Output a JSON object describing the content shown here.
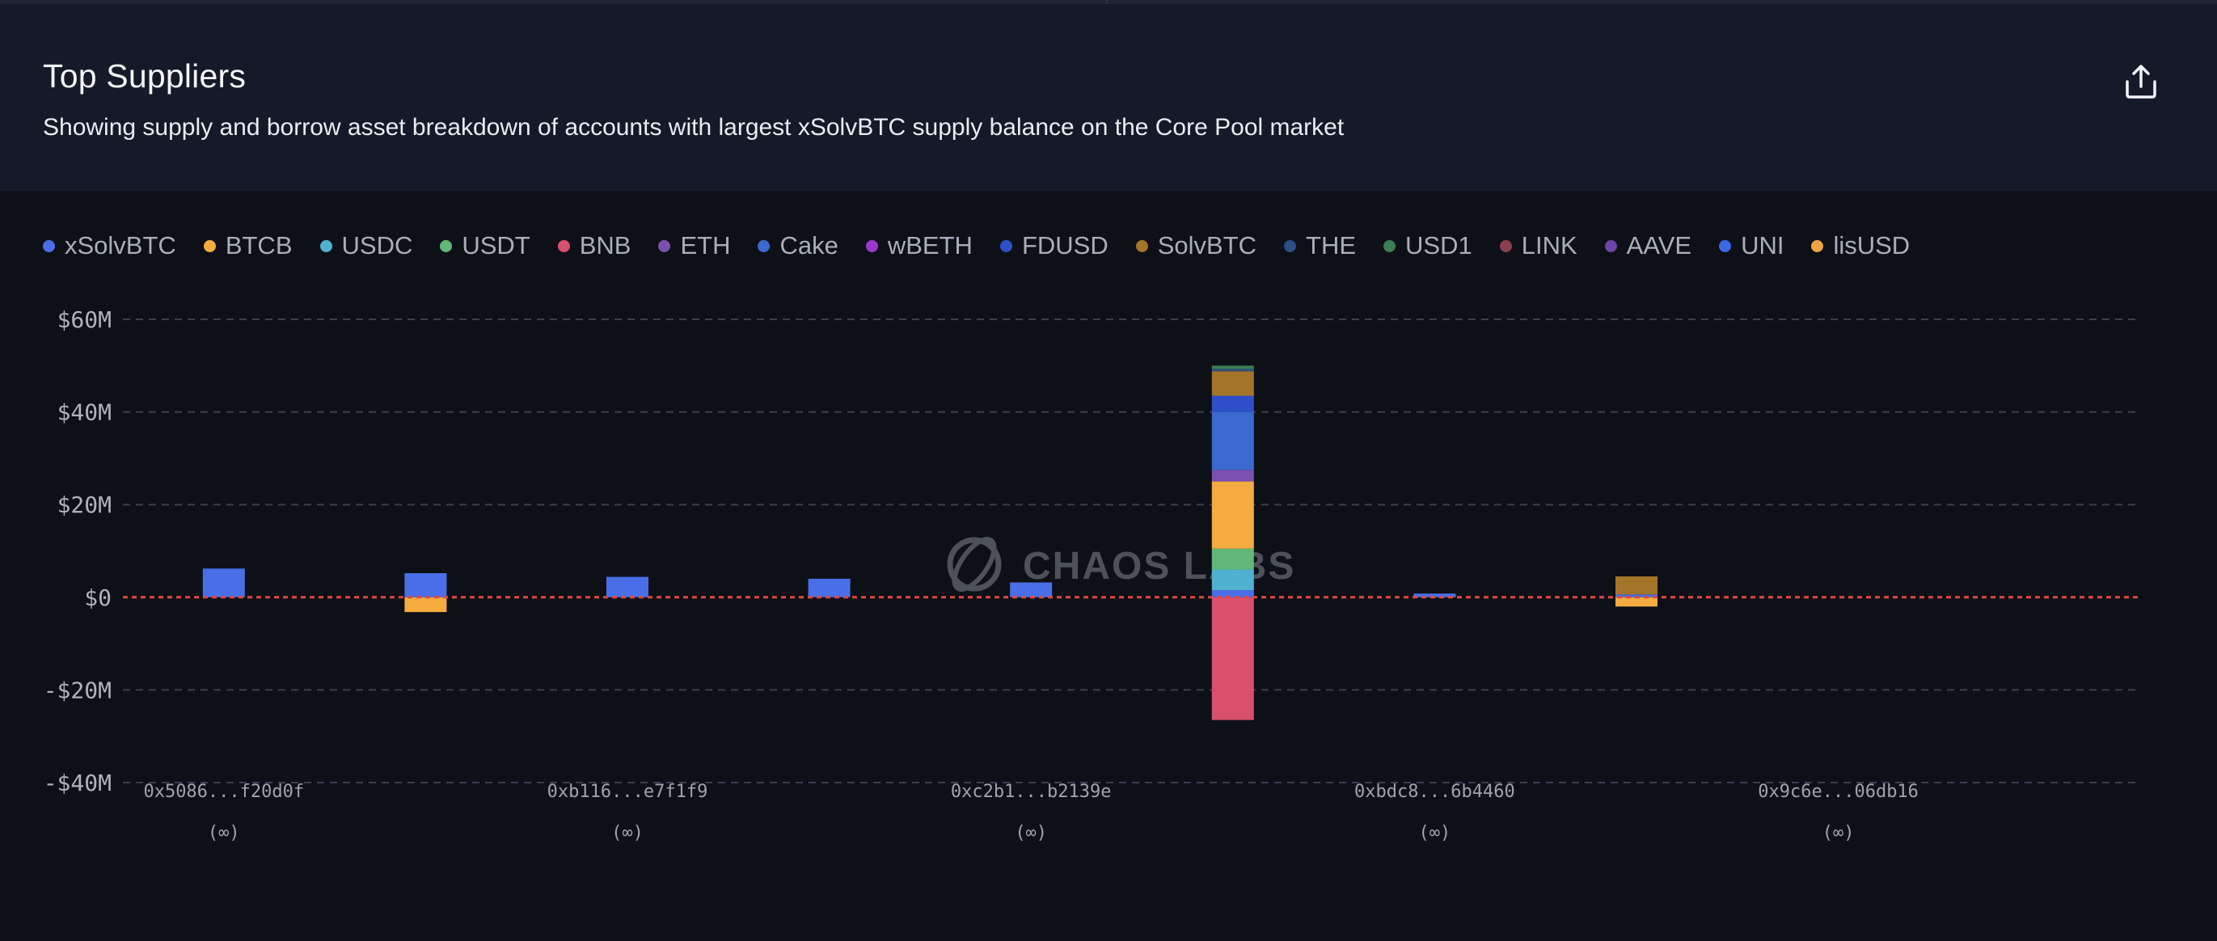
{
  "header": {
    "title": "Top Suppliers",
    "subtitle": "Showing supply and borrow asset breakdown of accounts with largest xSolvBTC supply balance on the Core Pool market",
    "share_icon": "share-upload-icon"
  },
  "watermark": {
    "text": "CHAOS LABS",
    "icon": "chaos-labs-logo-icon"
  },
  "chart_data": {
    "type": "bar",
    "stacked": true,
    "legend_position": "top-left",
    "grid": true,
    "ylim": [
      -40,
      60
    ],
    "yticks": [
      60,
      40,
      20,
      0,
      -20,
      -40
    ],
    "ytick_labels": [
      "$60M",
      "$40M",
      "$20M",
      "$0",
      "-$20M",
      "-$40M"
    ],
    "zero_line_color": "#e0483f",
    "legend": [
      {
        "name": "xSolvBTC",
        "color": "#4a6ee8"
      },
      {
        "name": "BTCB",
        "color": "#f4ab3f"
      },
      {
        "name": "USDC",
        "color": "#4fb0cf"
      },
      {
        "name": "USDT",
        "color": "#5fb877"
      },
      {
        "name": "BNB",
        "color": "#d9506e"
      },
      {
        "name": "ETH",
        "color": "#7b4fb0"
      },
      {
        "name": "Cake",
        "color": "#3a69cf"
      },
      {
        "name": "wBETH",
        "color": "#9b37cf"
      },
      {
        "name": "FDUSD",
        "color": "#2f4fc8"
      },
      {
        "name": "SolvBTC",
        "color": "#a47428"
      },
      {
        "name": "THE",
        "color": "#2b4f85"
      },
      {
        "name": "USD1",
        "color": "#3b7f52"
      },
      {
        "name": "LINK",
        "color": "#8b3f50"
      },
      {
        "name": "AAVE",
        "color": "#6d44a7"
      },
      {
        "name": "UNI",
        "color": "#3b69e4"
      },
      {
        "name": "lisUSD",
        "color": "#eea440"
      }
    ],
    "categories": [
      {
        "label": "0x5086...f20d0f",
        "sub": "(∞)"
      },
      {
        "label": "",
        "sub": ""
      },
      {
        "label": "0xb116...e7f1f9",
        "sub": "(∞)"
      },
      {
        "label": "",
        "sub": ""
      },
      {
        "label": "0xc2b1...b2139e",
        "sub": "(∞)"
      },
      {
        "label": "",
        "sub": ""
      },
      {
        "label": "0xbdc8...6b4460",
        "sub": "(∞)"
      },
      {
        "label": "",
        "sub": ""
      },
      {
        "label": "0x9c6e...06db16",
        "sub": "(∞)"
      },
      {
        "label": "",
        "sub": ""
      }
    ],
    "bars": [
      {
        "segments": [
          {
            "asset": "xSolvBTC",
            "value": 6.2
          }
        ]
      },
      {
        "segments": [
          {
            "asset": "xSolvBTC",
            "value": 5.2
          },
          {
            "asset": "BTCB",
            "value": -3.2
          }
        ]
      },
      {
        "segments": [
          {
            "asset": "xSolvBTC",
            "value": 4.4
          }
        ]
      },
      {
        "segments": [
          {
            "asset": "xSolvBTC",
            "value": 4.0
          }
        ]
      },
      {
        "segments": [
          {
            "asset": "xSolvBTC",
            "value": 3.2
          }
        ]
      },
      {
        "segments": [
          {
            "asset": "xSolvBTC",
            "value": 1.5
          },
          {
            "asset": "USDC",
            "value": 4.5
          },
          {
            "asset": "USDT",
            "value": 4.5
          },
          {
            "asset": "BTCB",
            "value": 14.5
          },
          {
            "asset": "ETH",
            "value": 2.5
          },
          {
            "asset": "Cake",
            "value": 12.5
          },
          {
            "asset": "FDUSD",
            "value": 3.5
          },
          {
            "asset": "SolvBTC",
            "value": 5.3
          },
          {
            "asset": "THE",
            "value": 0.5
          },
          {
            "asset": "USD1",
            "value": 0.7
          },
          {
            "asset": "BNB",
            "value": -26.5
          }
        ]
      },
      {
        "segments": [
          {
            "asset": "xSolvBTC",
            "value": 0.8
          }
        ]
      },
      {
        "segments": [
          {
            "asset": "xSolvBTC",
            "value": 0.6
          },
          {
            "asset": "SolvBTC",
            "value": 3.9
          },
          {
            "asset": "BTCB",
            "value": -2.0
          }
        ]
      },
      {
        "segments": []
      },
      {
        "segments": []
      }
    ]
  }
}
